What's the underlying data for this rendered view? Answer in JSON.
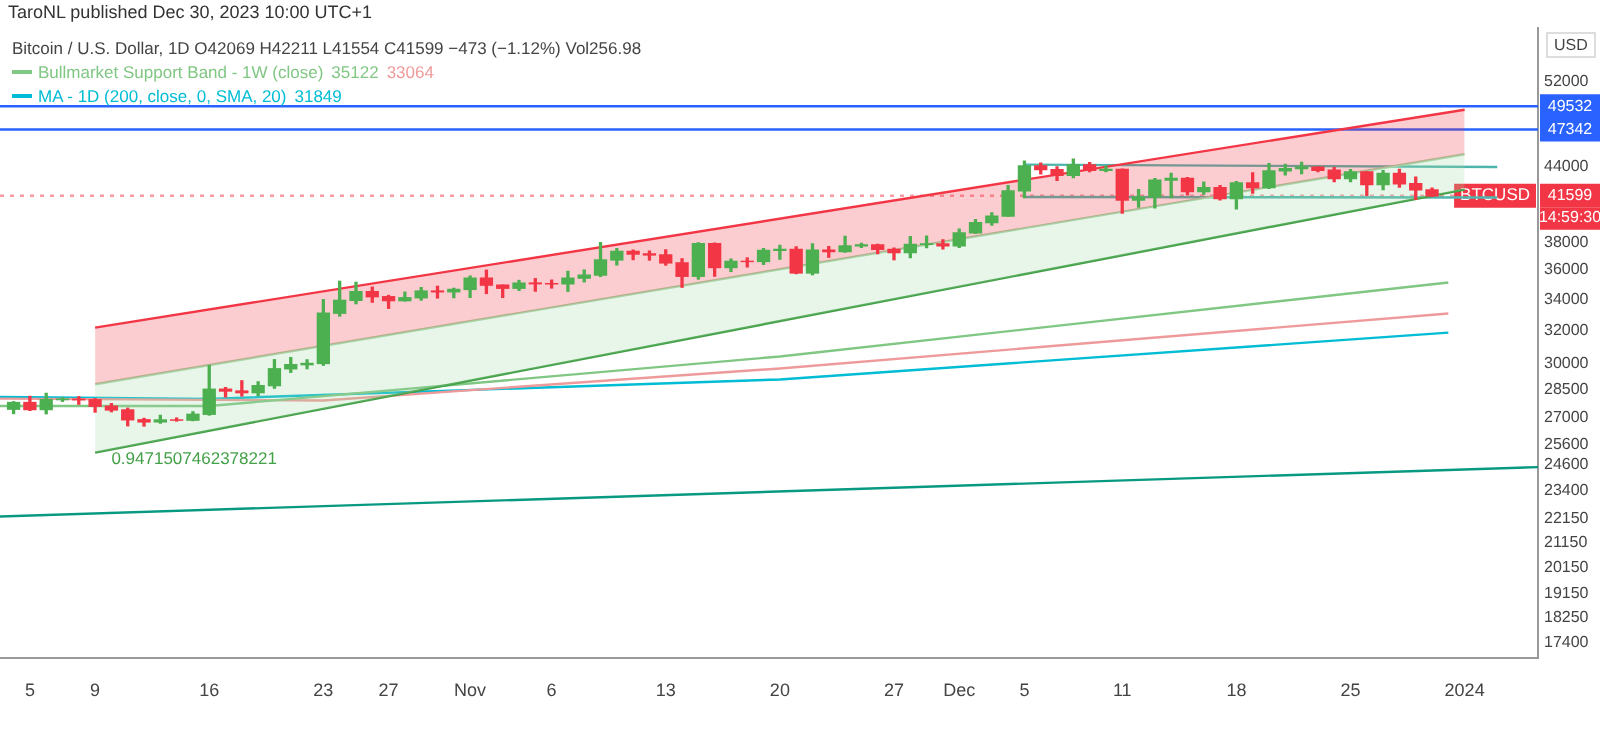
{
  "chart_data": {
    "type": "candlestick",
    "title": "TaroNL published Dec 30, 2023 10:00 UTC+1",
    "subtitle": "Bitcoin / U.S. Dollar, 1D O42069 H42211 L41554 C41599 −473 (−1.12%) Vol256.98",
    "ylabel": "USD",
    "x": [
      "2023-10-04",
      "2023-10-05",
      "2023-10-06",
      "2023-10-07",
      "2023-10-08",
      "2023-10-09",
      "2023-10-10",
      "2023-10-11",
      "2023-10-12",
      "2023-10-13",
      "2023-10-14",
      "2023-10-15",
      "2023-10-16",
      "2023-10-17",
      "2023-10-18",
      "2023-10-19",
      "2023-10-20",
      "2023-10-21",
      "2023-10-22",
      "2023-10-23",
      "2023-10-24",
      "2023-10-25",
      "2023-10-26",
      "2023-10-27",
      "2023-10-28",
      "2023-10-29",
      "2023-10-30",
      "2023-10-31",
      "2023-11-01",
      "2023-11-02",
      "2023-11-03",
      "2023-11-04",
      "2023-11-05",
      "2023-11-06",
      "2023-11-07",
      "2023-11-08",
      "2023-11-09",
      "2023-11-10",
      "2023-11-11",
      "2023-11-12",
      "2023-11-13",
      "2023-11-14",
      "2023-11-15",
      "2023-11-16",
      "2023-11-17",
      "2023-11-18",
      "2023-11-19",
      "2023-11-20",
      "2023-11-21",
      "2023-11-22",
      "2023-11-23",
      "2023-11-24",
      "2023-11-25",
      "2023-11-26",
      "2023-11-27",
      "2023-11-28",
      "2023-11-29",
      "2023-11-30",
      "2023-12-01",
      "2023-12-02",
      "2023-12-03",
      "2023-12-04",
      "2023-12-05",
      "2023-12-06",
      "2023-12-07",
      "2023-12-08",
      "2023-12-09",
      "2023-12-10",
      "2023-12-11",
      "2023-12-12",
      "2023-12-13",
      "2023-12-14",
      "2023-12-15",
      "2023-12-16",
      "2023-12-17",
      "2023-12-18",
      "2023-12-19",
      "2023-12-20",
      "2023-12-21",
      "2023-12-22",
      "2023-12-23",
      "2023-12-24",
      "2023-12-25",
      "2023-12-26",
      "2023-12-27",
      "2023-12-28",
      "2023-12-29",
      "2023-12-30"
    ],
    "ohlc": [
      [
        27430,
        27830,
        27200,
        27790
      ],
      [
        27790,
        28120,
        27370,
        27410
      ],
      [
        27410,
        28290,
        27190,
        27950
      ],
      [
        27950,
        28040,
        27860,
        27970
      ],
      [
        27970,
        28100,
        27700,
        27940
      ],
      [
        27940,
        27990,
        27280,
        27590
      ],
      [
        27590,
        27730,
        27300,
        27390
      ],
      [
        27390,
        27480,
        26560,
        26870
      ],
      [
        26870,
        26940,
        26550,
        26760
      ],
      [
        26760,
        27100,
        26700,
        26860
      ],
      [
        26860,
        26960,
        26810,
        26850
      ],
      [
        26850,
        27290,
        26830,
        27160
      ],
      [
        27160,
        29870,
        27120,
        28520
      ],
      [
        28520,
        28610,
        28100,
        28420
      ],
      [
        28420,
        28990,
        28150,
        28330
      ],
      [
        28330,
        28930,
        28180,
        28720
      ],
      [
        28720,
        30210,
        28580,
        29680
      ],
      [
        29680,
        30330,
        29480,
        29920
      ],
      [
        29920,
        30200,
        29690,
        29990
      ],
      [
        29990,
        33960,
        29890,
        33080
      ],
      [
        33080,
        35200,
        32900,
        33920
      ],
      [
        33920,
        35130,
        33700,
        34500
      ],
      [
        34500,
        34800,
        33800,
        34160
      ],
      [
        34160,
        34240,
        33400,
        33900
      ],
      [
        33900,
        34460,
        33880,
        34090
      ],
      [
        34090,
        34770,
        33940,
        34540
      ],
      [
        34540,
        34860,
        34080,
        34490
      ],
      [
        34490,
        34720,
        34100,
        34650
      ],
      [
        34650,
        35560,
        34120,
        35420
      ],
      [
        35420,
        35970,
        34380,
        34940
      ],
      [
        34940,
        34940,
        34120,
        34730
      ],
      [
        34730,
        35260,
        34590,
        35080
      ],
      [
        35080,
        35380,
        34540,
        35040
      ],
      [
        35040,
        35280,
        34750,
        35030
      ],
      [
        35030,
        35890,
        34530,
        35420
      ],
      [
        35420,
        35980,
        35170,
        35630
      ],
      [
        35630,
        37960,
        35540,
        36700
      ],
      [
        36700,
        37520,
        36350,
        37310
      ],
      [
        37310,
        37400,
        36730,
        37130
      ],
      [
        37130,
        37330,
        36700,
        37060
      ],
      [
        37060,
        37420,
        36340,
        36490
      ],
      [
        36490,
        36780,
        34800,
        35550
      ],
      [
        35550,
        37950,
        35360,
        37880
      ],
      [
        37880,
        37930,
        35560,
        36160
      ],
      [
        36160,
        36760,
        35890,
        36600
      ],
      [
        36600,
        36840,
        36210,
        36590
      ],
      [
        36590,
        37510,
        36390,
        37390
      ],
      [
        37390,
        37760,
        36760,
        37470
      ],
      [
        37470,
        37650,
        35740,
        35780
      ],
      [
        35780,
        37860,
        35660,
        37410
      ],
      [
        37410,
        37660,
        36900,
        37300
      ],
      [
        37300,
        38430,
        37260,
        37720
      ],
      [
        37720,
        37900,
        37620,
        37800
      ],
      [
        37800,
        37830,
        37150,
        37460
      ],
      [
        37460,
        37560,
        36720,
        37240
      ],
      [
        37240,
        38400,
        36870,
        37830
      ],
      [
        37830,
        38440,
        37600,
        37860
      ],
      [
        37860,
        38170,
        37500,
        37720
      ],
      [
        37720,
        38970,
        37620,
        38690
      ],
      [
        38690,
        39710,
        38650,
        39470
      ],
      [
        39470,
        40220,
        39290,
        39970
      ],
      [
        39970,
        42420,
        39970,
        41990
      ],
      [
        41990,
        44490,
        41450,
        44080
      ],
      [
        44080,
        44320,
        43420,
        43770
      ],
      [
        43770,
        44010,
        42860,
        43290
      ],
      [
        43290,
        44680,
        43100,
        44170
      ],
      [
        44170,
        44360,
        43600,
        43720
      ],
      [
        43720,
        44040,
        43600,
        43790
      ],
      [
        43790,
        43810,
        40220,
        41240
      ],
      [
        41240,
        42100,
        40680,
        41490
      ],
      [
        41490,
        43000,
        40620,
        42890
      ],
      [
        42890,
        43440,
        41440,
        43020
      ],
      [
        43020,
        43100,
        41680,
        41940
      ],
      [
        41940,
        42720,
        41740,
        42260
      ],
      [
        42260,
        42420,
        41260,
        41370
      ],
      [
        41370,
        42760,
        40550,
        42660
      ],
      [
        42660,
        43490,
        41820,
        42270
      ],
      [
        42270,
        44280,
        42200,
        43660
      ],
      [
        43660,
        44220,
        43330,
        43860
      ],
      [
        43860,
        44390,
        43430,
        43980
      ],
      [
        43980,
        44000,
        43600,
        43720
      ],
      [
        43720,
        43950,
        42760,
        43020
      ],
      [
        43020,
        43760,
        42770,
        43580
      ],
      [
        43580,
        43580,
        41630,
        42520
      ],
      [
        42520,
        43680,
        42100,
        43440
      ],
      [
        43440,
        43800,
        42300,
        42580
      ],
      [
        42580,
        43140,
        41300,
        42070
      ],
      [
        42069,
        42211,
        41554,
        41599
      ]
    ],
    "colors": [
      "#4caf50",
      "#f23645",
      "#4caf50",
      "#4caf50",
      "#f23645",
      "#f23645",
      "#f23645",
      "#f23645",
      "#f23645",
      "#4caf50",
      "#f23645",
      "#4caf50",
      "#4caf50",
      "#f23645",
      "#f23645",
      "#4caf50",
      "#4caf50",
      "#4caf50",
      "#4caf50",
      "#4caf50",
      "#4caf50",
      "#4caf50",
      "#f23645",
      "#f23645",
      "#4caf50",
      "#4caf50",
      "#f23645",
      "#4caf50",
      "#4caf50",
      "#f23645",
      "#f23645",
      "#4caf50",
      "#f23645",
      "#f23645",
      "#4caf50",
      "#4caf50",
      "#4caf50",
      "#4caf50",
      "#f23645",
      "#f23645",
      "#f23645",
      "#f23645",
      "#4caf50",
      "#f23645",
      "#4caf50",
      "#f23645",
      "#4caf50",
      "#4caf50",
      "#f23645",
      "#4caf50",
      "#f23645",
      "#4caf50",
      "#4caf50",
      "#f23645",
      "#f23645",
      "#4caf50",
      "#4caf50",
      "#f23645",
      "#4caf50",
      "#4caf50",
      "#4caf50",
      "#4caf50",
      "#4caf50",
      "#f23645",
      "#f23645",
      "#4caf50",
      "#f23645",
      "#4caf50",
      "#f23645",
      "#4caf50",
      "#4caf50",
      "#4caf50",
      "#f23645",
      "#4caf50",
      "#f23645",
      "#4caf50",
      "#f23645",
      "#4caf50",
      "#4caf50",
      "#4caf50",
      "#f23645",
      "#f23645",
      "#4caf50",
      "#f23645",
      "#4caf50",
      "#f23645",
      "#f23645",
      "#f23645"
    ],
    "series": [
      {
        "type": "area",
        "color": "#f23645",
        "x": [
          "2023-10-09",
          "2024-01-01"
        ],
        "values": [
          32160,
          49200
        ]
      },
      {
        "type": "area",
        "color": "#a5d6a7",
        "x": [
          "2023-10-09",
          "2024-01-01"
        ],
        "values": [
          28800,
          45100
        ]
      },
      {
        "type": "line",
        "color": "#43a047",
        "x": [
          "2023-10-09",
          "2024-01-01"
        ],
        "values": [
          25200,
          42100
        ]
      },
      {
        "type": "line",
        "name": "Bullmarket Support Band - 1W (close)",
        "color": "#81c784",
        "x": [
          "2023-10-03T04:00",
          "2023-10-16",
          "2023-11-20",
          "2023-12-31"
        ],
        "values": [
          27600,
          27600,
          30400,
          35122
        ]
      },
      {
        "type": "line",
        "color": "#ef9a9a",
        "x": [
          "2023-10-03T04:00",
          "2023-10-23",
          "2023-11-20",
          "2023-12-31"
        ],
        "values": [
          28000,
          27900,
          29700,
          33064
        ]
      },
      {
        "type": "line",
        "name": "MA - 1D (200, close, 0, SMA, 20)",
        "color": "#00bcd4",
        "x": [
          "2023-10-03T04:00",
          "2023-10-16",
          "2023-11-20",
          "2023-12-31"
        ],
        "values": [
          28100,
          27990,
          29070,
          31849
        ]
      },
      {
        "type": "line",
        "color": "#4db6ac",
        "x": [
          "2023-12-05",
          "2024-01-03"
        ],
        "values": [
          44200,
          44000
        ]
      },
      {
        "type": "line",
        "color": "#4db6ac",
        "x": [
          "2023-12-05",
          "2024-01-03"
        ],
        "values": [
          41500,
          41450
        ]
      },
      {
        "type": "line",
        "color": "#089981",
        "x": [
          "2023-10-03T04:00",
          "2024-01-05T12:00"
        ],
        "values": [
          22250,
          24500
        ]
      }
    ],
    "ref_lines": [
      {
        "axis": "y",
        "value": 49532,
        "label": "49532",
        "color": "#2962ff",
        "line_style": "solid"
      },
      {
        "axis": "y",
        "value": 47342,
        "label": "47342",
        "color": "#2962ff",
        "line_style": "solid"
      },
      {
        "axis": "y",
        "value": 41599,
        "label": "41599",
        "color": "#f23645",
        "line_style": "dotted"
      }
    ],
    "annotations": [
      {
        "text": "0.9471507462378221",
        "x": "2023-10-10",
        "y": 24900
      },
      {
        "text": "BTCUSD",
        "x": "2024-01-05T12:00",
        "y": 41599
      },
      "35122",
      "33064",
      "31849",
      "14:59:30"
    ],
    "log": true,
    "marker": "none",
    "legend": "top left",
    "ylim": [
      16870,
      57700
    ],
    "yticks": [
      52000,
      44000,
      38000,
      36000,
      34000,
      32000,
      30000,
      28500,
      27000,
      25600,
      24600,
      23400,
      22150,
      21150,
      20150,
      19150,
      18250,
      17400
    ],
    "xlim": [
      "2023-10-03T04:00",
      "2024-01-05T12:00"
    ],
    "xticks": [
      {
        "value": "2023-10-05",
        "label": "5"
      },
      {
        "value": "2023-10-09",
        "label": "9"
      },
      {
        "value": "2023-10-16",
        "label": "16"
      },
      {
        "value": "2023-10-23",
        "label": "23"
      },
      {
        "value": "2023-10-27",
        "label": "27"
      },
      {
        "value": "2023-11-01",
        "label": "Nov"
      },
      {
        "value": "2023-11-06",
        "label": "6"
      },
      {
        "value": "2023-11-13",
        "label": "13"
      },
      {
        "value": "2023-11-20",
        "label": "20"
      },
      {
        "value": "2023-11-27",
        "label": "27"
      },
      {
        "value": "2023-12-01",
        "label": "Dec"
      },
      {
        "value": "2023-12-05",
        "label": "5"
      },
      {
        "value": "2023-12-11",
        "label": "11"
      },
      {
        "value": "2023-12-18",
        "label": "18"
      },
      {
        "value": "2023-12-25",
        "label": "25"
      },
      {
        "value": "2024-01-01",
        "label": "2024"
      }
    ]
  }
}
